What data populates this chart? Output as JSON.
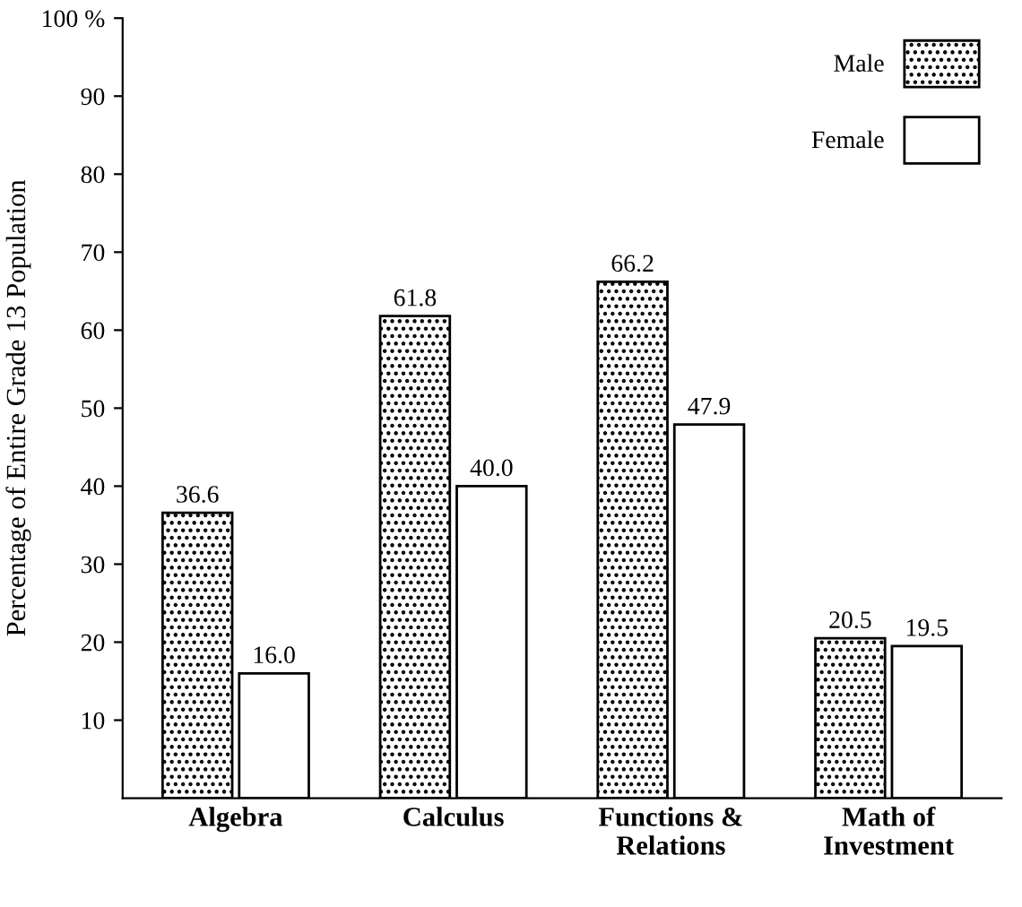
{
  "chart_data": {
    "type": "bar",
    "ylabel": "Percentage of Entire Grade 13 Population",
    "categories": [
      "Algebra",
      "Calculus",
      "Functions &\nRelations",
      "Math of\nInvestment"
    ],
    "series": [
      {
        "name": "Male",
        "color": "#000000",
        "values": [
          36.6,
          61.8,
          66.2,
          20.5
        ],
        "value_labels": [
          "36.6",
          "61.8",
          "66.2",
          "20.5"
        ]
      },
      {
        "name": "Female",
        "color": "#ffffff",
        "values": [
          16.0,
          40.0,
          47.9,
          19.5
        ],
        "value_labels": [
          "16.0",
          "40.0",
          "47.9",
          "19.5"
        ]
      }
    ],
    "ylim": [
      0,
      100
    ],
    "yticks": [
      10,
      20,
      30,
      40,
      50,
      60,
      70,
      80,
      90,
      {
        "value": 100,
        "label": "100 %"
      }
    ],
    "legend": "top right",
    "grid": false
  }
}
